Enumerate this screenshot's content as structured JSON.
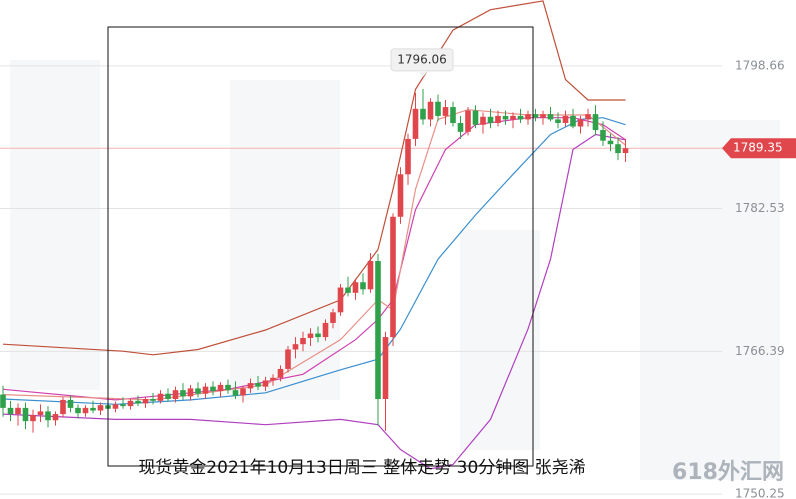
{
  "chart_data": {
    "type": "candlestick",
    "title": "现货黄金2021年10月13日周三 整体走势  30分钟图  张尧浠",
    "watermark": "618外汇网",
    "up_color": "#e0474c",
    "down_color": "#2fa14a",
    "open": [
      1761.5,
      1760.0,
      1759.3,
      1760.0,
      1758.5,
      1759.2,
      1759.6,
      1758.6,
      1759.3,
      1760.9,
      1760.0,
      1759.4,
      1760.0,
      1759.7,
      1760.3,
      1759.9,
      1760.4,
      1760.2,
      1760.8,
      1760.5,
      1761.0,
      1760.8,
      1761.6,
      1761.0,
      1762.0,
      1761.3,
      1762.2,
      1761.6,
      1762.4,
      1761.9,
      1762.6,
      1762.0,
      1761.4,
      1762.2,
      1762.8,
      1762.4,
      1763.1,
      1763.4,
      1764.4,
      1766.6,
      1767.2,
      1767.9,
      1768.4,
      1768.0,
      1769.6,
      1770.8,
      1773.6,
      1773.0,
      1774.2,
      1773.4,
      1776.6,
      1761.0,
      1768.0,
      1781.6,
      1786.4,
      1790.4,
      1793.8,
      1792.6,
      1794.6,
      1793.0,
      1794.0,
      1792.2,
      1791.2,
      1793.6,
      1792.0,
      1792.9,
      1792.2,
      1793.0,
      1792.6,
      1793.0,
      1792.6,
      1793.2,
      1792.8,
      1793.2,
      1792.6,
      1792.2,
      1793.0,
      1791.8,
      1792.6,
      1793.2,
      1791.4,
      1790.2,
      1789.8,
      1788.8
    ],
    "high": [
      1762.5,
      1760.8,
      1760.5,
      1760.6,
      1759.8,
      1760.4,
      1760.2,
      1759.6,
      1761.2,
      1761.4,
      1760.4,
      1760.3,
      1760.8,
      1760.6,
      1761.0,
      1760.7,
      1761.2,
      1761.0,
      1761.4,
      1761.3,
      1761.7,
      1762.0,
      1762.2,
      1762.4,
      1762.8,
      1762.6,
      1762.9,
      1762.8,
      1763.0,
      1762.9,
      1763.2,
      1763.0,
      1762.5,
      1763.3,
      1763.6,
      1763.5,
      1763.8,
      1764.8,
      1767.0,
      1768.0,
      1768.6,
      1769.0,
      1769.2,
      1770.0,
      1771.2,
      1774.0,
      1774.8,
      1774.6,
      1775.2,
      1777.5,
      1777.4,
      1768.6,
      1782.0,
      1787.2,
      1791.0,
      1795.6,
      1796.06,
      1795.0,
      1795.4,
      1794.8,
      1794.6,
      1793.0,
      1794.0,
      1794.2,
      1793.4,
      1793.8,
      1793.6,
      1793.6,
      1793.4,
      1793.8,
      1793.6,
      1793.8,
      1793.6,
      1794.0,
      1793.4,
      1793.6,
      1793.8,
      1793.0,
      1793.8,
      1794.2,
      1792.4,
      1791.0,
      1790.6,
      1790.4
    ],
    "low": [
      1759.0,
      1758.5,
      1758.0,
      1757.6,
      1757.2,
      1758.4,
      1757.8,
      1758.0,
      1758.9,
      1759.5,
      1758.8,
      1759.0,
      1759.4,
      1759.2,
      1759.6,
      1759.5,
      1759.9,
      1759.8,
      1760.2,
      1760.0,
      1760.4,
      1760.5,
      1760.7,
      1760.6,
      1760.9,
      1760.8,
      1761.2,
      1761.0,
      1761.4,
      1761.2,
      1761.6,
      1761.0,
      1760.6,
      1761.7,
      1762.0,
      1761.9,
      1762.5,
      1763.0,
      1764.0,
      1765.6,
      1766.4,
      1767.0,
      1767.4,
      1767.6,
      1769.0,
      1770.4,
      1772.6,
      1772.2,
      1772.8,
      1773.0,
      1758.0,
      1757.4,
      1767.0,
      1780.8,
      1785.2,
      1789.6,
      1792.0,
      1791.8,
      1792.4,
      1792.0,
      1791.8,
      1790.4,
      1790.8,
      1791.6,
      1791.0,
      1791.6,
      1791.8,
      1792.0,
      1791.6,
      1792.2,
      1792.0,
      1792.4,
      1792.0,
      1792.4,
      1791.6,
      1791.8,
      1791.6,
      1791.0,
      1791.8,
      1790.8,
      1789.6,
      1789.0,
      1788.0,
      1787.8
    ],
    "close": [
      1760.0,
      1759.3,
      1760.0,
      1758.5,
      1759.2,
      1759.6,
      1758.6,
      1759.3,
      1760.9,
      1760.0,
      1759.4,
      1760.0,
      1759.7,
      1760.3,
      1759.9,
      1760.4,
      1760.2,
      1760.8,
      1760.5,
      1761.0,
      1760.8,
      1761.6,
      1761.0,
      1762.0,
      1761.3,
      1762.2,
      1761.6,
      1762.4,
      1761.9,
      1762.6,
      1762.0,
      1761.4,
      1762.2,
      1762.8,
      1762.4,
      1763.1,
      1763.4,
      1764.4,
      1766.6,
      1767.2,
      1767.9,
      1768.4,
      1768.0,
      1769.6,
      1770.8,
      1773.6,
      1773.0,
      1774.2,
      1773.4,
      1776.6,
      1761.0,
      1768.0,
      1781.6,
      1786.4,
      1790.4,
      1793.8,
      1792.6,
      1794.6,
      1793.0,
      1794.0,
      1792.2,
      1791.2,
      1793.6,
      1792.0,
      1792.9,
      1792.2,
      1793.0,
      1792.6,
      1793.0,
      1792.6,
      1793.2,
      1792.8,
      1793.2,
      1792.6,
      1792.2,
      1793.0,
      1791.8,
      1792.6,
      1793.2,
      1791.4,
      1790.2,
      1789.8,
      1788.8,
      1789.35
    ],
    "series": [
      {
        "color": "#c0503a",
        "x": [
          0,
          16,
          20,
          26,
          35,
          45,
          50,
          52,
          55,
          60,
          65,
          72,
          75,
          78,
          83
        ],
        "values": [
          1767.2,
          1766.4,
          1766.0,
          1766.6,
          1768.8,
          1772.2,
          1777.9,
          1784.7,
          1796.0,
          1802.7,
          1805.0,
          1806.0,
          1797.1,
          1794.8,
          1794.8
        ]
      },
      {
        "color": "#b040c0",
        "x": [
          0,
          15,
          25,
          35,
          45,
          50,
          53,
          57,
          60,
          65,
          70,
          73,
          76,
          79,
          83
        ],
        "values": [
          1759.3,
          1758.7,
          1758.7,
          1758.1,
          1758.7,
          1758.1,
          1755.3,
          1753.1,
          1753.6,
          1758.7,
          1768.9,
          1776.8,
          1789.2,
          1790.9,
          1790.3
        ]
      },
      {
        "color": "#3a8fd0",
        "x": [
          0,
          15,
          25,
          35,
          45,
          50,
          53,
          58,
          63,
          68,
          73,
          77,
          80,
          83
        ],
        "values": [
          1761.0,
          1760.4,
          1760.9,
          1761.7,
          1764.3,
          1765.5,
          1768.9,
          1776.8,
          1781.8,
          1786.4,
          1790.9,
          1792.6,
          1792.8,
          1792.0
        ]
      },
      {
        "color": "#d040b0",
        "x": [
          0,
          15,
          30,
          40,
          47,
          50,
          52,
          55,
          59,
          63,
          70,
          76,
          80,
          83
        ],
        "values": [
          1762.1,
          1760.9,
          1762.1,
          1763.8,
          1767.7,
          1770.0,
          1772.2,
          1782.4,
          1789.2,
          1792.0,
          1792.8,
          1792.8,
          1792.0,
          1790.3
        ]
      },
      {
        "color": "#e89088",
        "x": [
          0,
          20,
          35,
          45,
          50,
          52,
          55,
          58,
          62,
          70,
          78,
          83
        ],
        "values": [
          1761.5,
          1760.9,
          1762.6,
          1767.7,
          1772.2,
          1771.1,
          1784.7,
          1792.6,
          1793.7,
          1793.1,
          1793.1,
          1789.7
        ]
      }
    ],
    "ylim": [
      1749.7,
      1806.1
    ],
    "yticks": [
      1798.66,
      1782.53,
      1766.39,
      1750.25
    ],
    "grid": true
  }
}
